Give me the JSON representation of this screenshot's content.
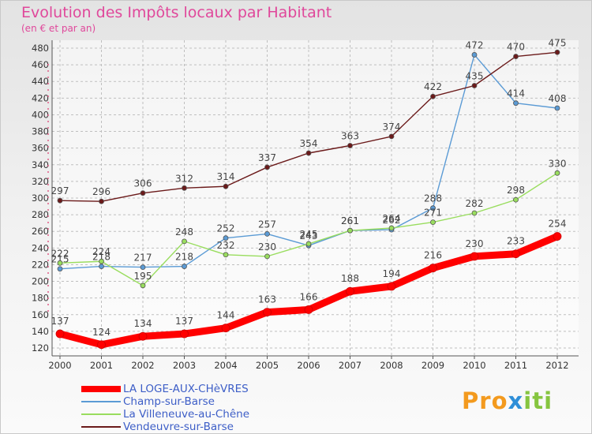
{
  "title": "Evolution des Impôts locaux par Habitant",
  "subtitle": "(en € et par an)",
  "logo": {
    "letters": [
      "P",
      "r",
      "o",
      "x",
      "i",
      "t",
      "i"
    ],
    "colors": [
      "#f39a1e",
      "#f39a1e",
      "#f39a1e",
      "#2f8fd8",
      "#86c540",
      "#86c540",
      "#86c540"
    ]
  },
  "chart_data": {
    "type": "line",
    "title": "Evolution des Impôts locaux par Habitant",
    "subtitle": "(en € et par an)",
    "x": [
      "2000",
      "2001",
      "2002",
      "2003",
      "2004",
      "2005",
      "2006",
      "2007",
      "2008",
      "2009",
      "2010",
      "2011",
      "2012"
    ],
    "ylim": [
      120,
      480
    ],
    "yticks": [
      120,
      140,
      160,
      180,
      200,
      220,
      240,
      260,
      280,
      300,
      320,
      340,
      360,
      380,
      400,
      420,
      440,
      460,
      480
    ],
    "grid": true,
    "legend_position": "bottom-left",
    "series": [
      {
        "name": "LA LOGE-AUX-CHèVRES",
        "color": "#ff0000",
        "emphasis": true,
        "values": [
          137,
          124,
          134,
          137,
          144,
          163,
          166,
          188,
          194,
          216,
          230,
          233,
          254
        ]
      },
      {
        "name": "Champ-sur-Barse",
        "color": "#5b9bd5",
        "emphasis": false,
        "values": [
          215,
          218,
          217,
          218,
          252,
          257,
          243,
          261,
          262,
          288,
          472,
          414,
          408
        ]
      },
      {
        "name": "La Villeneuve-au-Chêne",
        "color": "#99dd5e",
        "emphasis": false,
        "values": [
          222,
          224,
          195,
          248,
          232,
          230,
          245,
          261,
          264,
          271,
          282,
          298,
          330
        ]
      },
      {
        "name": "Vendeuvre-sur-Barse",
        "color": "#6b1a1a",
        "emphasis": false,
        "values": [
          297,
          296,
          306,
          312,
          314,
          337,
          354,
          363,
          374,
          422,
          435,
          470,
          475
        ]
      }
    ]
  }
}
